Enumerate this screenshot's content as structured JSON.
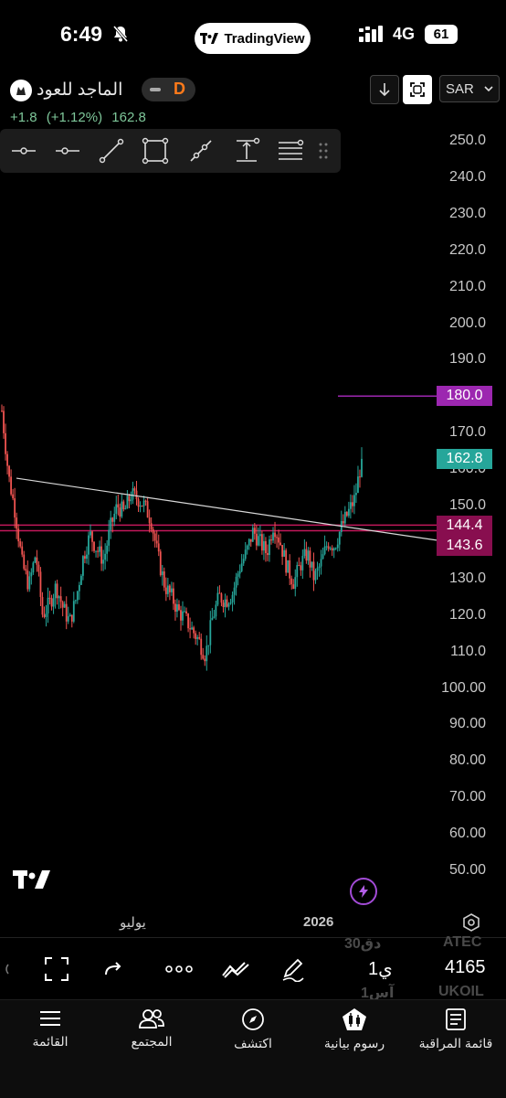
{
  "status_bar": {
    "time": "6:49",
    "app_pill": "TradingView",
    "network": "4G",
    "battery": "61"
  },
  "symbol": {
    "name": "الماجد للعود",
    "interval": "D",
    "change": "+1.8",
    "change_pct": "(+1.12%)",
    "price": "162.8"
  },
  "header": {
    "currency": "SAR"
  },
  "price_axis": {
    "ticks": [
      "250.0",
      "240.0",
      "230.0",
      "220.0",
      "210.0",
      "200.0",
      "190.0",
      "180.0",
      "170.0",
      "160.0",
      "150.0",
      "140.0",
      "130.0",
      "120.0",
      "110.0",
      "100.00",
      "90.00",
      "80.00",
      "70.00",
      "60.00",
      "50.00"
    ],
    "badges": [
      {
        "label": "180.0",
        "color": "#9c27b0"
      },
      {
        "label": "162.8",
        "color": "#26a69a"
      },
      {
        "label": "144.4",
        "color": "#880e4f"
      },
      {
        "label": "143.6",
        "color": "#880e4f"
      }
    ]
  },
  "time_axis": {
    "labels": [
      "يوليو",
      "2026"
    ]
  },
  "chart_data": {
    "type": "candlestick",
    "horizontal_lines": [
      180.0,
      144.4,
      143.6
    ],
    "trendline": {
      "from": 157.5,
      "to": 140.5
    },
    "close_path": [
      176,
      158,
      148,
      134,
      128,
      137,
      120,
      123,
      128,
      122,
      118,
      125,
      136,
      142,
      138,
      135,
      144,
      150,
      148,
      153,
      152,
      150,
      146,
      136,
      128,
      125,
      121,
      119,
      116,
      113,
      109,
      119,
      125,
      124,
      126,
      133,
      137,
      143,
      140,
      137,
      145,
      140,
      133,
      129,
      134,
      137,
      130,
      134,
      140,
      139,
      144,
      148,
      152,
      162.8
    ],
    "last_price": 162.8,
    "ylim": [
      50,
      250
    ]
  },
  "bottom_bar": {
    "ghost_top": [
      "ATEC",
      "30دق"
    ],
    "ghost_bottom": [
      "UKOIL",
      "1آس"
    ],
    "interval": "1ي",
    "last_price": "4165"
  },
  "tab_bar": {
    "items": [
      {
        "label": "القائمة",
        "icon": "menu-icon"
      },
      {
        "label": "المجتمع",
        "icon": "people-icon"
      },
      {
        "label": "اكتشف",
        "icon": "compass-icon"
      },
      {
        "label": "رسوم بيانية",
        "icon": "chart-icon"
      },
      {
        "label": "قائمة المراقبة",
        "icon": "watchlist-icon"
      }
    ]
  }
}
